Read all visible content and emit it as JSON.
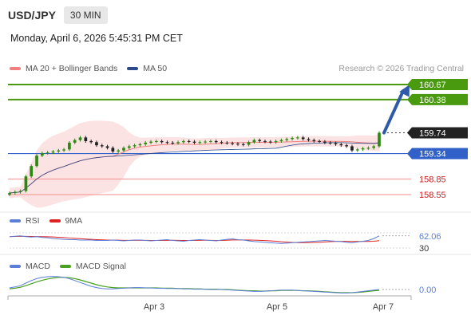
{
  "header": {
    "symbol": "USD/JPY",
    "interval": "30 MIN",
    "datetime": "Monday, April 6, 2026 5:45:31 PM CET"
  },
  "legend": {
    "ma20": "MA 20 + Bollinger Bands",
    "ma50": "MA 50",
    "credit": "Research © 2026 Trading Central"
  },
  "colors": {
    "ma20": "#f08080",
    "ma50": "#2a4a8a",
    "green": "#4a9a10",
    "blue": "#3060c8",
    "red": "#cc2020",
    "arrow": "#2e5aa8",
    "rsi": "#5b7fd6",
    "rsi_ma": "#dd2222",
    "macd": "#5b7fd6",
    "macd_signal": "#4aa020"
  },
  "chart_data": {
    "type": "candlestick",
    "price_levels": [
      {
        "label": "160.67",
        "value": 160.67,
        "style": "green-line"
      },
      {
        "label": "160.38",
        "value": 160.38,
        "style": "green-line"
      },
      {
        "label": "159.74",
        "value": 159.74,
        "style": "current-price"
      },
      {
        "label": "159.34",
        "value": 159.34,
        "style": "blue-line"
      },
      {
        "label": "158.85",
        "value": 158.85,
        "style": "red-line"
      },
      {
        "label": "158.55",
        "value": 158.55,
        "style": "red-line"
      }
    ],
    "x_ticks": [
      "Apr 3",
      "Apr 5",
      "Apr 7"
    ],
    "close": [
      158.58,
      158.6,
      158.62,
      158.9,
      159.1,
      159.3,
      159.35,
      159.36,
      159.38,
      159.4,
      159.42,
      159.55,
      159.6,
      159.65,
      159.58,
      159.56,
      159.5,
      159.48,
      159.45,
      159.38,
      159.4,
      159.45,
      159.48,
      159.5,
      159.52,
      159.55,
      159.57,
      159.58,
      159.56,
      159.55,
      159.54,
      159.56,
      159.58,
      159.57,
      159.55,
      159.56,
      159.57,
      159.58,
      159.56,
      159.55,
      159.54,
      159.53,
      159.52,
      159.51,
      159.56,
      159.6,
      159.58,
      159.57,
      159.56,
      159.58,
      159.6,
      159.62,
      159.64,
      159.65,
      159.62,
      159.6,
      159.58,
      159.57,
      159.55,
      159.54,
      159.52,
      159.5,
      159.48,
      159.4,
      159.42,
      159.44,
      159.45,
      159.48,
      159.74
    ],
    "rsi": {
      "legend": [
        "RSI",
        "9MA"
      ],
      "last_label": "62.06",
      "last": 62.06,
      "level_label": "30",
      "values": [
        60,
        61,
        62,
        60,
        59,
        60,
        58,
        57,
        55,
        54,
        53,
        52,
        52,
        51,
        51,
        51,
        50,
        50,
        50,
        51,
        50,
        49,
        50,
        51,
        51,
        50,
        49,
        50,
        51,
        52,
        50,
        49,
        48,
        50,
        51,
        52,
        51,
        50,
        49,
        51,
        53,
        54,
        52,
        51,
        49,
        47,
        46,
        45,
        44,
        43,
        42,
        43,
        44,
        45,
        46,
        47,
        48,
        49,
        50,
        49,
        48,
        47,
        45,
        44,
        46,
        48,
        50,
        55,
        62
      ]
    },
    "macd": {
      "legend": [
        "MACD",
        "MACD Signal"
      ],
      "last_label": "0.00",
      "last": 0.0,
      "macd": [
        0.05,
        0.08,
        0.12,
        0.2,
        0.28,
        0.34,
        0.38,
        0.4,
        0.41,
        0.4,
        0.38,
        0.34,
        0.28,
        0.22,
        0.16,
        0.1,
        0.06,
        0.03,
        0.02,
        0.02,
        0.03,
        0.04,
        0.05,
        0.06,
        0.06,
        0.05,
        0.05,
        0.04,
        0.04,
        0.03,
        0.03,
        0.03,
        0.02,
        0.02,
        0.01,
        0.01,
        0.01,
        0.0,
        0.0,
        0.0,
        -0.01,
        -0.02,
        -0.03,
        -0.04,
        -0.05,
        -0.06,
        -0.06,
        -0.05,
        -0.04,
        -0.03,
        -0.02,
        -0.02,
        -0.02,
        -0.03,
        -0.04,
        -0.05,
        -0.06,
        -0.07,
        -0.08,
        -0.09,
        -0.1,
        -0.11,
        -0.11,
        -0.1,
        -0.08,
        -0.06,
        -0.04,
        -0.02,
        0.0
      ],
      "signal": [
        0.02,
        0.04,
        0.07,
        0.12,
        0.18,
        0.24,
        0.29,
        0.33,
        0.36,
        0.38,
        0.38,
        0.37,
        0.34,
        0.3,
        0.25,
        0.2,
        0.15,
        0.11,
        0.08,
        0.06,
        0.05,
        0.05,
        0.05,
        0.05,
        0.05,
        0.05,
        0.05,
        0.05,
        0.04,
        0.04,
        0.04,
        0.03,
        0.03,
        0.03,
        0.02,
        0.02,
        0.01,
        0.01,
        0.01,
        0.0,
        0.0,
        -0.01,
        -0.02,
        -0.03,
        -0.04,
        -0.04,
        -0.05,
        -0.05,
        -0.04,
        -0.04,
        -0.03,
        -0.03,
        -0.03,
        -0.03,
        -0.04,
        -0.04,
        -0.05,
        -0.06,
        -0.07,
        -0.08,
        -0.09,
        -0.1,
        -0.1,
        -0.1,
        -0.09,
        -0.08,
        -0.06,
        -0.04,
        -0.03
      ]
    }
  }
}
